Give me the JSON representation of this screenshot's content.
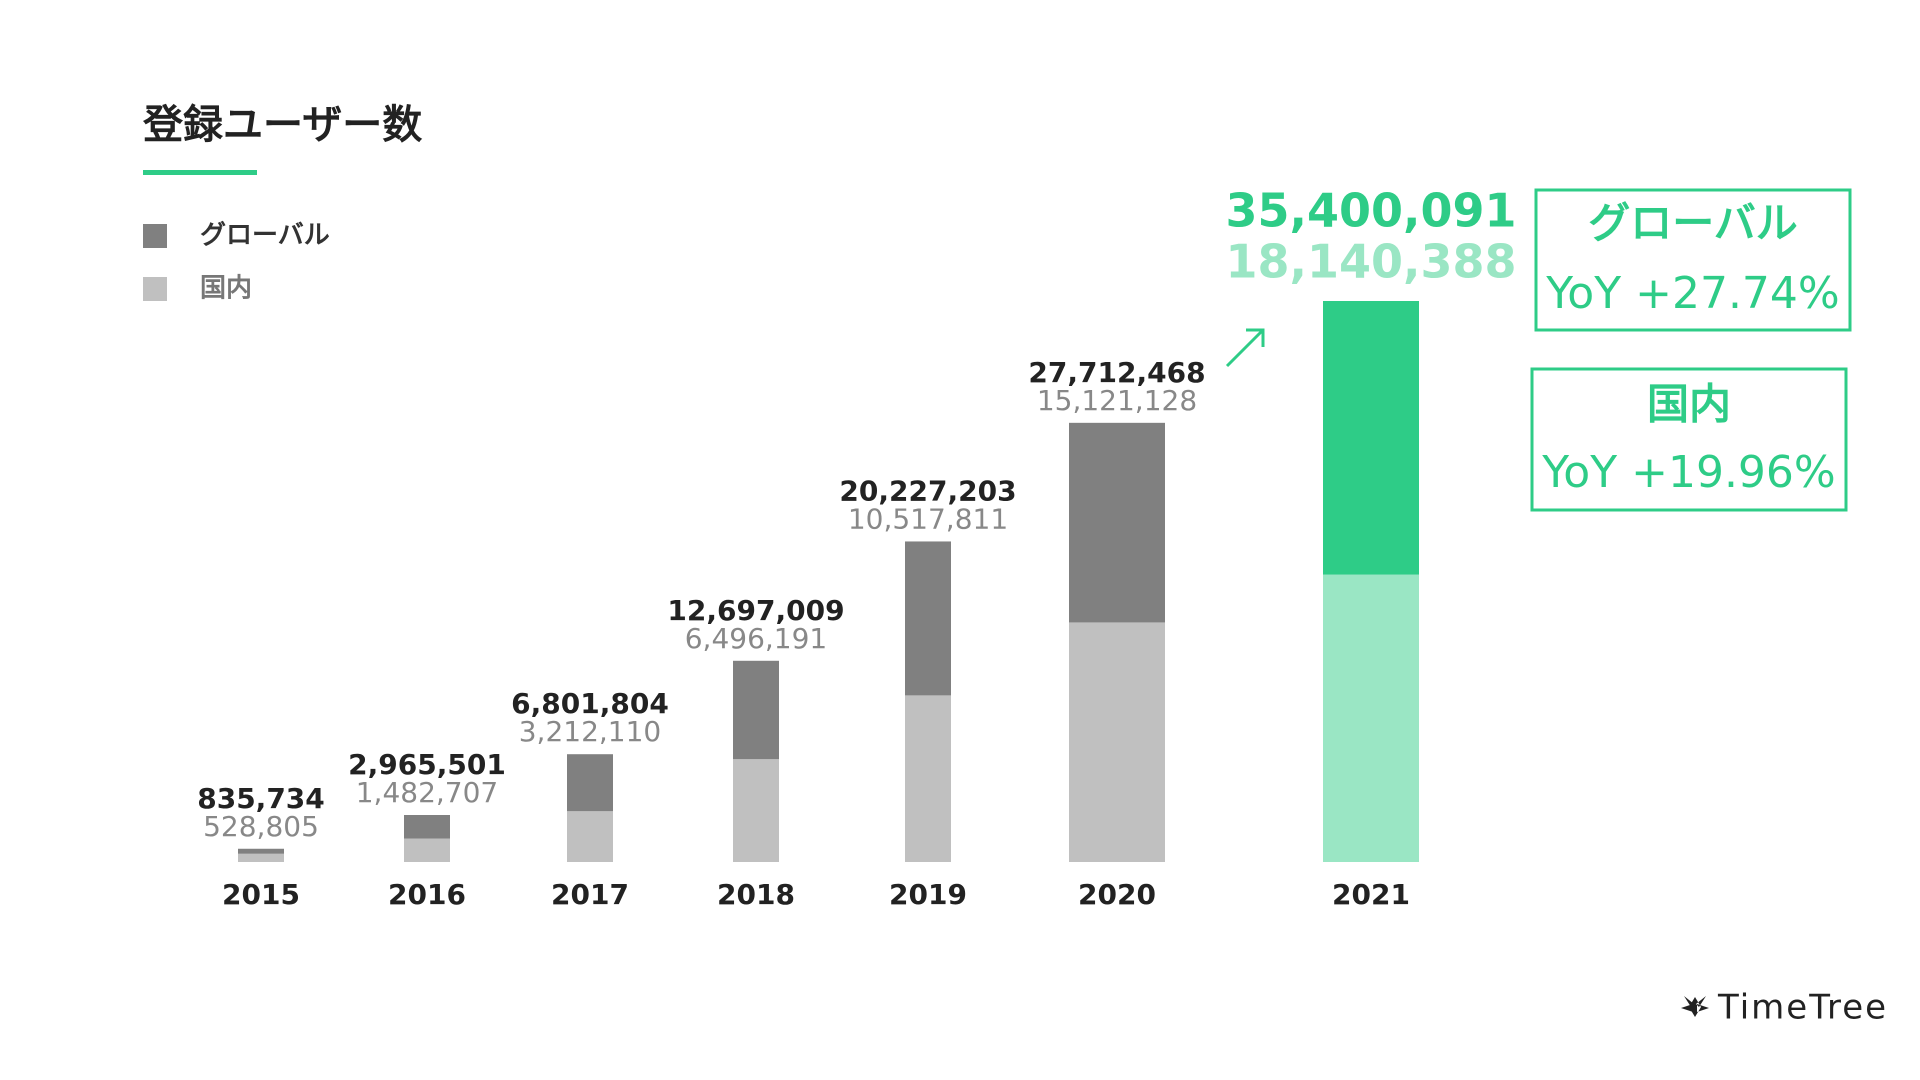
{
  "chart_data": {
    "type": "bar",
    "title": "登録ユーザー数",
    "categories": [
      "2015",
      "2016",
      "2017",
      "2018",
      "2019",
      "2020",
      "2021"
    ],
    "series": [
      {
        "name": "グローバル",
        "color": "#808080",
        "highlight_color": "#2ecc87",
        "values": [
          835734,
          2965501,
          6801804,
          12697009,
          20227203,
          27712468,
          35400091
        ],
        "value_labels": [
          "835,734",
          "2,965,501",
          "6,801,804",
          "12,697,009",
          "20,227,203",
          "27,712,468",
          "35,400,091"
        ]
      },
      {
        "name": "国内",
        "color": "#c0c0c0",
        "highlight_color": "#9ae6c4",
        "values": [
          528805,
          1482707,
          3212110,
          6496191,
          10517811,
          15121128,
          18140388
        ],
        "value_labels": [
          "528,805",
          "1,482,707",
          "3,212,110",
          "6,496,191",
          "10,517,811",
          "15,121,128",
          "18,140,388"
        ]
      }
    ],
    "highlight_category": "2021",
    "annotations": [
      {
        "title": "グローバル",
        "text": "YoY +27.74%"
      },
      {
        "title": "国内",
        "text": "YoY +19.96%"
      }
    ],
    "logo": "TimeTree"
  }
}
